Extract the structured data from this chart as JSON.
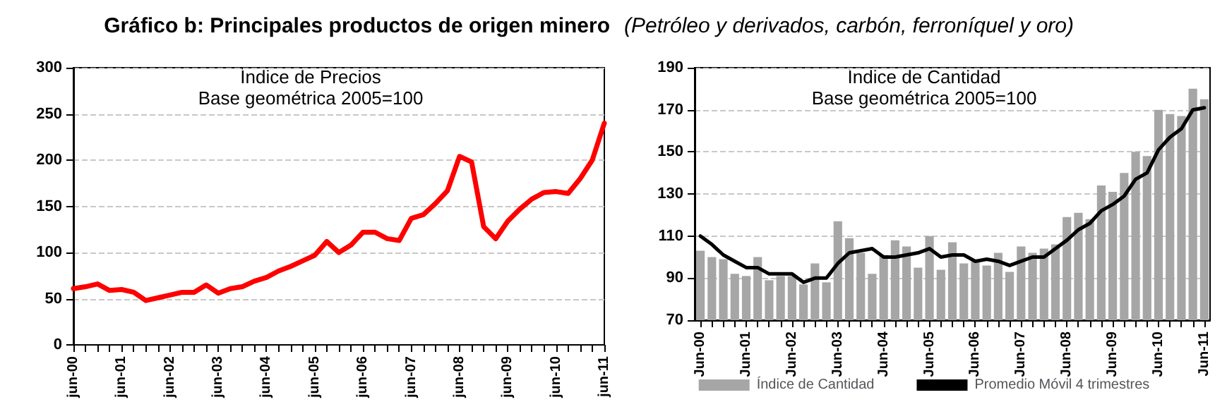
{
  "chart_data": [
    {
      "type": "line",
      "title": "Gráfico b: Principales productos de origen minero",
      "annotations": [
        "Índice de Precios",
        "Base geométrica 2005=100"
      ],
      "categories": [
        "jun-00",
        null,
        null,
        null,
        "jun-01",
        null,
        null,
        null,
        "jun-02",
        null,
        null,
        null,
        "jun-03",
        null,
        null,
        null,
        "jun-04",
        null,
        null,
        null,
        "jun-05",
        null,
        null,
        null,
        "jun-06",
        null,
        null,
        null,
        "jun-07",
        null,
        null,
        null,
        "jun-08",
        null,
        null,
        null,
        "jun-09",
        null,
        null,
        null,
        "jun-10",
        null,
        null,
        null,
        "jun-11"
      ],
      "series": [
        {
          "color": "#ff0000",
          "values": [
            61,
            63,
            66,
            59,
            60,
            57,
            48,
            51,
            54,
            57,
            57,
            65,
            56,
            61,
            63,
            69,
            73,
            80,
            85,
            91,
            97,
            112,
            100,
            108,
            122,
            122,
            115,
            113,
            137,
            141,
            153,
            167,
            204,
            198,
            128,
            115,
            134,
            147,
            158,
            165,
            166,
            164,
            180,
            200,
            240
          ]
        }
      ],
      "ylim": [
        0,
        300
      ],
      "yticks": [
        0,
        50,
        100,
        150,
        200,
        250,
        300
      ],
      "grid": "y",
      "marker": "none",
      "legend": false
    },
    {
      "type": "bar",
      "subtitle": "(Petróleo y derivados, carbón, ferroníquel y oro)",
      "annotations": [
        "Índice de Cantidad",
        "Base geométrica 2005=100"
      ],
      "categories": [
        "Jun-00",
        null,
        null,
        null,
        "Jun-01",
        null,
        null,
        null,
        "Jun-02",
        null,
        null,
        null,
        "Jun-03",
        null,
        null,
        null,
        "Jun-04",
        null,
        null,
        null,
        "Jun-05",
        null,
        null,
        null,
        "Jun-06",
        null,
        null,
        null,
        "Jun-07",
        null,
        null,
        null,
        "Jun-08",
        null,
        null,
        null,
        "Jun-09",
        null,
        null,
        null,
        "Jun-10",
        null,
        null,
        null,
        "Jun-11"
      ],
      "series": [
        {
          "name": "Índice de Cantidad",
          "type": "bar",
          "color": "#a6a6a6",
          "values": [
            103,
            100,
            99,
            92,
            91,
            100,
            89,
            91,
            91,
            87,
            97,
            88,
            117,
            109,
            102,
            92,
            101,
            108,
            105,
            95,
            110,
            94,
            107,
            97,
            98,
            96,
            102,
            93,
            105,
            102,
            104,
            106,
            119,
            121,
            118,
            134,
            131,
            140,
            150,
            148,
            170,
            168,
            167,
            180,
            175
          ]
        },
        {
          "name": "Promedio Móvil 4 trimestres",
          "type": "line",
          "color": "#000000",
          "values": [
            110,
            106,
            101,
            98,
            95,
            95,
            92,
            92,
            92,
            88,
            90,
            90,
            97,
            102,
            103,
            104,
            100,
            100,
            101,
            102,
            104,
            100,
            101,
            101,
            98,
            99,
            98,
            96,
            98,
            100,
            100,
            104,
            108,
            113,
            116,
            122,
            125,
            129,
            137,
            140,
            151,
            157,
            161,
            170,
            171
          ]
        }
      ],
      "ylim": [
        70,
        190
      ],
      "yticks": [
        70,
        90,
        110,
        130,
        150,
        170,
        190
      ],
      "grid": "y",
      "marker": "none",
      "legend": "bottom"
    }
  ]
}
